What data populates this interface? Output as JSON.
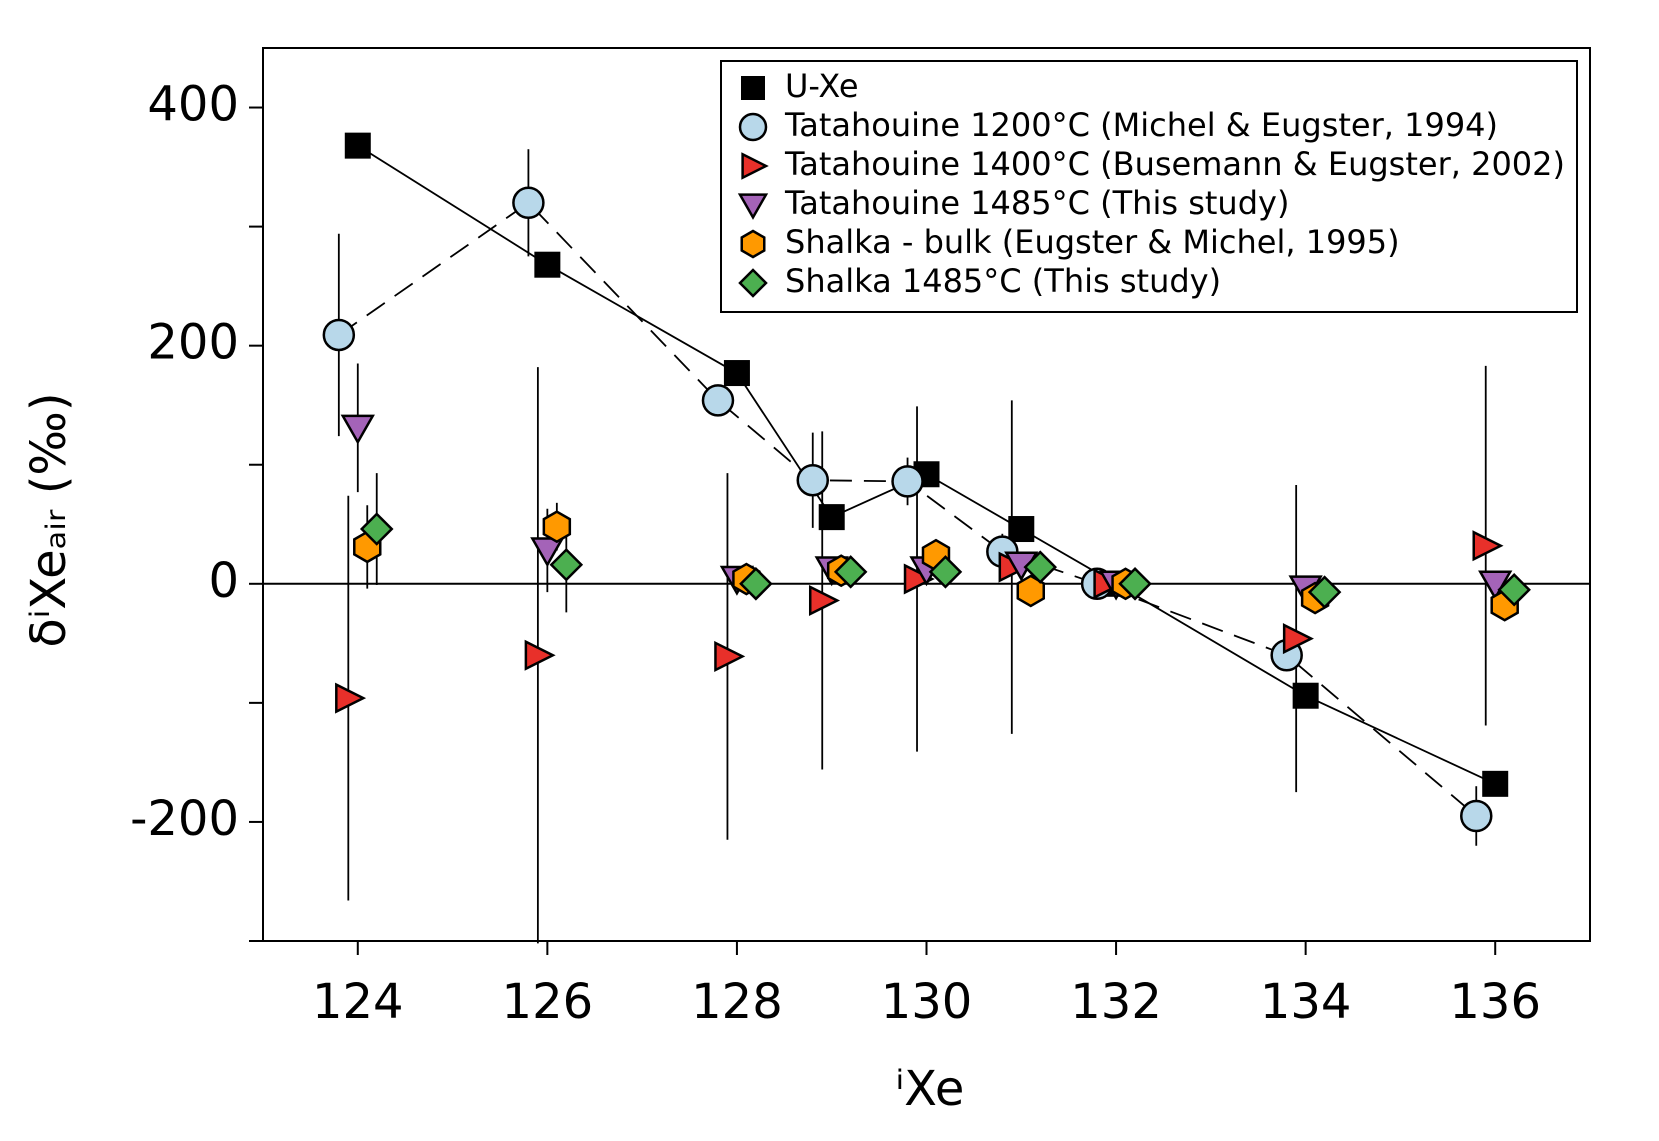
{
  "chart_data": {
    "type": "scatter",
    "x_label": "ⁱXe",
    "y_label": "δⁱXeₐᵢᵣ (‰)",
    "xlim": [
      123,
      137
    ],
    "xticks": [
      124,
      126,
      128,
      130,
      132,
      134,
      136
    ],
    "ylim": [
      -300,
      450
    ],
    "yticks": [
      -200,
      0,
      200,
      400
    ],
    "yminorticks": [
      -300,
      -100,
      100,
      300
    ],
    "hline": 0,
    "legend": "upper right",
    "series": [
      {
        "name": "U-Xe",
        "color": "#000000",
        "marker": "square",
        "line_style": "solid",
        "x": [
          124,
          126,
          128,
          129,
          130,
          131,
          132,
          134,
          136
        ],
        "values": [
          368,
          268,
          177,
          56,
          92,
          46,
          0,
          -94,
          -168
        ]
      },
      {
        "name": "Tatahouine 1200°C (Michel & Eugster, 1994)",
        "color": "#b8d8ea",
        "marker": "circle",
        "line_style": "dashed",
        "x": [
          123.8,
          125.8,
          127.8,
          128.8,
          129.8,
          130.8,
          131.8,
          133.8,
          135.8
        ],
        "values": [
          209,
          320,
          154,
          87,
          86,
          27,
          0,
          -60,
          -195
        ],
        "errors": [
          85,
          45,
          10,
          40,
          20,
          15,
          0,
          10,
          25
        ]
      },
      {
        "name": "Tatahouine 1400°C (Busemann & Eugster, 2002)",
        "color": "#e8302a",
        "marker": "triangle-right",
        "line_style": null,
        "x": [
          123.9,
          125.9,
          127.9,
          128.9,
          129.9,
          130.9,
          131.9,
          133.9,
          135.9
        ],
        "values": [
          -96,
          -60,
          -61,
          -14,
          4,
          14,
          0,
          -46,
          32
        ],
        "errors": [
          170,
          242,
          154,
          142,
          145,
          140,
          0,
          129,
          151
        ]
      },
      {
        "name": "Tatahouine 1485°C (This study)",
        "color": "#a463b8",
        "marker": "triangle-down",
        "line_style": null,
        "x": [
          124,
          126,
          128,
          129,
          130,
          131,
          132,
          134,
          136
        ],
        "values": [
          131,
          28,
          4,
          12,
          12,
          16,
          0,
          -4,
          0
        ],
        "errors": [
          54,
          35,
          10,
          5,
          5,
          10,
          0,
          5,
          5
        ]
      },
      {
        "name": "Shalka - bulk (Eugster & Michel, 1995)",
        "color": "#ff9900",
        "marker": "hexagon",
        "line_style": null,
        "x": [
          124.1,
          126.1,
          128.1,
          129.1,
          130.1,
          131.1,
          132.1,
          134.1,
          136.1
        ],
        "values": [
          31,
          48,
          4,
          11,
          24,
          -6,
          0,
          -12,
          -18
        ],
        "errors": [
          35,
          20,
          12,
          5,
          12,
          10,
          0,
          8,
          8
        ]
      },
      {
        "name": "Shalka 1485°C (This study)",
        "color": "#4caf50",
        "marker": "diamond",
        "line_style": null,
        "x": [
          124.2,
          126.2,
          128.2,
          129.2,
          130.2,
          131.2,
          132.2,
          134.2,
          136.2
        ],
        "values": [
          46,
          16,
          0,
          10,
          10,
          14,
          0,
          -7,
          -5
        ],
        "errors": [
          47,
          40,
          5,
          5,
          5,
          5,
          0,
          5,
          5
        ]
      }
    ]
  }
}
